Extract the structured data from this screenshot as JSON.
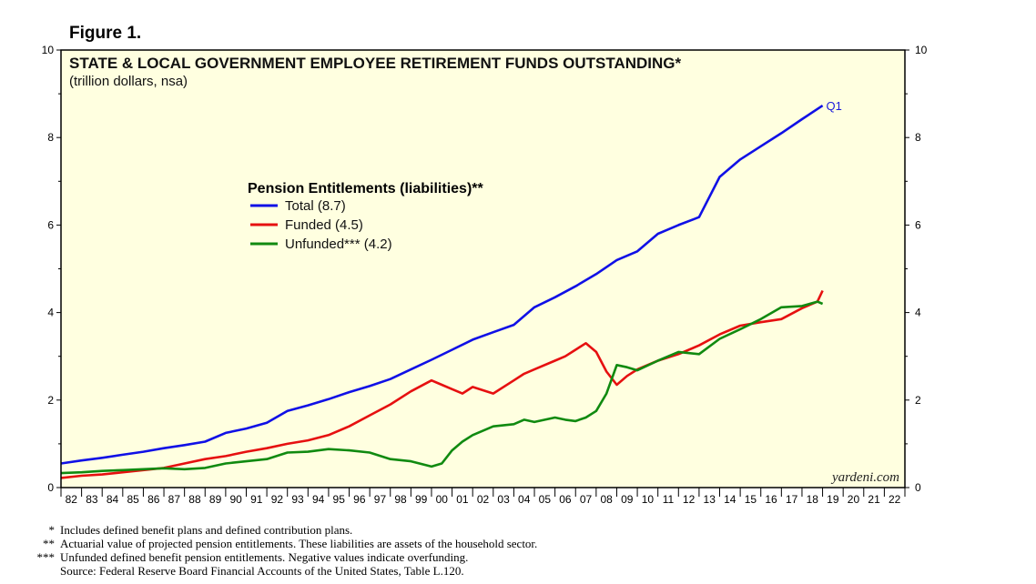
{
  "figure_label": "Figure 1.",
  "watermark": "yardeni.com",
  "colors": {
    "total": "#1010e6",
    "funded": "#e61010",
    "unfunded": "#108a10",
    "plot_bg": "#ffffe0"
  },
  "footnotes": [
    {
      "mark": "*",
      "text": "Includes defined benefit plans and defined contribution plans."
    },
    {
      "mark": "**",
      "text": "Actuarial value of projected pension entitlements. These liabilities are assets of the household sector."
    },
    {
      "mark": "***",
      "text": "Unfunded defined benefit pension entitlements. Negative values indicate overfunding."
    },
    {
      "mark": "",
      "text": "Source: Federal Reserve Board Financial Accounts of the United States, Table L.120."
    }
  ],
  "chart_data": {
    "type": "line",
    "title": "STATE & LOCAL GOVERNMENT EMPLOYEE RETIREMENT FUNDS OUTSTANDING*",
    "subtitle": "(trillion dollars, nsa)",
    "ylim": [
      0,
      10
    ],
    "yticks": [
      0,
      2,
      4,
      6,
      8,
      10
    ],
    "xlim": [
      1982,
      2023
    ],
    "xtick_labels": [
      "82",
      "83",
      "84",
      "85",
      "86",
      "87",
      "88",
      "89",
      "90",
      "91",
      "92",
      "93",
      "94",
      "95",
      "96",
      "97",
      "98",
      "99",
      "00",
      "01",
      "02",
      "03",
      "04",
      "05",
      "06",
      "07",
      "08",
      "09",
      "10",
      "11",
      "12",
      "13",
      "14",
      "15",
      "16",
      "17",
      "18",
      "19",
      "20",
      "21",
      "22"
    ],
    "legend_title": "Pension Entitlements (liabilities)**",
    "last_label": "Q1",
    "series": [
      {
        "name": "Total (8.7)",
        "key": "total",
        "x": [
          1982,
          1983,
          1984,
          1985,
          1986,
          1987,
          1988,
          1989,
          1990,
          1991,
          1992,
          1993,
          1994,
          1995,
          1996,
          1997,
          1998,
          1999,
          2000,
          2001,
          2002,
          2003,
          2004,
          2005,
          2006,
          2007,
          2008,
          2009,
          2010,
          2011,
          2012,
          2013,
          2014,
          2015,
          2016,
          2017,
          2018,
          2019
        ],
        "y": [
          0.55,
          0.62,
          0.68,
          0.75,
          0.82,
          0.9,
          0.97,
          1.05,
          1.25,
          1.35,
          1.48,
          1.75,
          1.88,
          2.02,
          2.18,
          2.32,
          2.48,
          2.7,
          2.92,
          3.15,
          3.38,
          3.55,
          3.72,
          4.12,
          4.35,
          4.6,
          4.88,
          5.2,
          5.4,
          5.8,
          6.0,
          6.18,
          7.1,
          7.5,
          7.8,
          8.1,
          8.42,
          8.73
        ]
      },
      {
        "name": "Funded (4.5)",
        "key": "funded",
        "x": [
          1982,
          1983,
          1984,
          1985,
          1986,
          1987,
          1988,
          1989,
          1990,
          1991,
          1992,
          1993,
          1994,
          1995,
          1996,
          1997,
          1998,
          1999,
          2000,
          2000.5,
          2001,
          2001.5,
          2002,
          2003,
          2004,
          2004.5,
          2005,
          2006,
          2006.5,
          2007,
          2007.5,
          2008,
          2008.5,
          2009,
          2009.5,
          2010,
          2011,
          2012,
          2013,
          2014,
          2015,
          2016,
          2017,
          2018,
          2018.75,
          2019
        ],
        "y": [
          0.22,
          0.27,
          0.3,
          0.35,
          0.4,
          0.45,
          0.55,
          0.65,
          0.72,
          0.82,
          0.9,
          1.0,
          1.08,
          1.2,
          1.4,
          1.65,
          1.9,
          2.2,
          2.45,
          2.35,
          2.25,
          2.15,
          2.3,
          2.15,
          2.45,
          2.6,
          2.7,
          2.9,
          3.0,
          3.15,
          3.3,
          3.1,
          2.65,
          2.35,
          2.55,
          2.7,
          2.9,
          3.05,
          3.25,
          3.5,
          3.7,
          3.78,
          3.85,
          4.1,
          4.25,
          4.5
        ]
      },
      {
        "name": "Unfunded*** (4.2)",
        "key": "unfunded",
        "x": [
          1982,
          1983,
          1984,
          1985,
          1986,
          1987,
          1988,
          1989,
          1990,
          1991,
          1992,
          1993,
          1994,
          1995,
          1996,
          1997,
          1998,
          1999,
          2000,
          2000.5,
          2001,
          2001.5,
          2002,
          2003,
          2004,
          2004.5,
          2005,
          2006,
          2006.5,
          2007,
          2007.5,
          2008,
          2008.5,
          2009,
          2009.5,
          2010,
          2011,
          2012,
          2013,
          2014,
          2015,
          2016,
          2017,
          2018,
          2018.75,
          2019
        ],
        "y": [
          0.33,
          0.35,
          0.38,
          0.4,
          0.42,
          0.44,
          0.42,
          0.45,
          0.55,
          0.6,
          0.65,
          0.8,
          0.82,
          0.88,
          0.85,
          0.8,
          0.65,
          0.6,
          0.48,
          0.55,
          0.85,
          1.05,
          1.2,
          1.4,
          1.45,
          1.55,
          1.5,
          1.6,
          1.55,
          1.52,
          1.6,
          1.75,
          2.15,
          2.8,
          2.75,
          2.68,
          2.9,
          3.1,
          3.05,
          3.4,
          3.62,
          3.85,
          4.12,
          4.15,
          4.25,
          4.2
        ]
      }
    ]
  }
}
